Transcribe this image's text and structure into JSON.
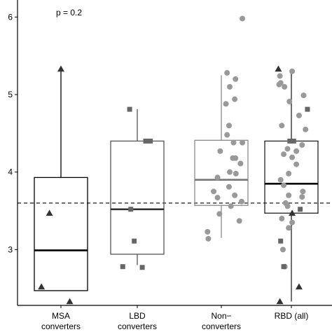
{
  "chart_data": {
    "type": "boxplot",
    "title": "",
    "xlabel": "",
    "ylabel": "",
    "annotation": "p = 0.2",
    "ylim": [
      2.28,
      6.22
    ],
    "y_ticks": [
      3,
      4,
      5,
      6
    ],
    "y_tick_labels": [
      "3",
      "4",
      "5",
      "6"
    ],
    "reference_line": 3.6,
    "grid": false,
    "categories": [
      "MSA converters",
      "LBD converters",
      "Non− converters",
      "RBD (all)"
    ],
    "category_label_lines": [
      [
        "MSA",
        "converters"
      ],
      [
        "LBD",
        "converters"
      ],
      [
        "Non−",
        "converters"
      ],
      [
        "RBD (all)",
        ""
      ]
    ],
    "boxes": [
      {
        "name": "MSA converters",
        "q1": 2.47,
        "median": 2.99,
        "q3": 3.93,
        "whisker_low": 2.47,
        "whisker_high": 5.33,
        "box_color": "#000000",
        "median_color": "#000000"
      },
      {
        "name": "LBD converters",
        "q1": 2.94,
        "median": 3.52,
        "q3": 4.4,
        "whisker_low": 2.8,
        "whisker_high": 4.81,
        "box_color": "#555555",
        "median_color": "#333333"
      },
      {
        "name": "Non− converters",
        "q1": 3.57,
        "median": 3.9,
        "q3": 4.41,
        "whisker_low": 3.15,
        "whisker_high": 5.25,
        "box_color": "#8a8a8a",
        "median_color": "#777777"
      },
      {
        "name": "RBD (all)",
        "q1": 3.47,
        "median": 3.85,
        "q3": 4.4,
        "whisker_low": 2.33,
        "whisker_high": 5.33,
        "box_color": "#222222",
        "median_color": "#000000"
      }
    ],
    "points": [
      {
        "group": 0,
        "y": 5.33,
        "shape": "triangle",
        "color": "#333333",
        "jitter": 0
      },
      {
        "group": 0,
        "y": 3.47,
        "shape": "triangle",
        "color": "#333333",
        "jitter": -0.3
      },
      {
        "group": 0,
        "y": 2.52,
        "shape": "triangle",
        "color": "#333333",
        "jitter": -0.51
      },
      {
        "group": 0,
        "y": 2.33,
        "shape": "triangle",
        "color": "#333333",
        "jitter": 0.23
      },
      {
        "group": 1,
        "y": 4.81,
        "shape": "square",
        "color": "#666666",
        "jitter": -0.2
      },
      {
        "group": 1,
        "y": 4.4,
        "shape": "square",
        "color": "#666666",
        "jitter": 0.22
      },
      {
        "group": 1,
        "y": 4.4,
        "shape": "square",
        "color": "#666666",
        "jitter": 0.34
      },
      {
        "group": 1,
        "y": 3.52,
        "shape": "square",
        "color": "#666666",
        "jitter": -0.17
      },
      {
        "group": 1,
        "y": 3.11,
        "shape": "square",
        "color": "#666666",
        "jitter": -0.08
      },
      {
        "group": 1,
        "y": 2.78,
        "shape": "square",
        "color": "#666666",
        "jitter": -0.38
      },
      {
        "group": 1,
        "y": 2.77,
        "shape": "square",
        "color": "#666666",
        "jitter": 0.13
      },
      {
        "group": 2,
        "y": 5.98,
        "shape": "circle",
        "color": "#999999",
        "jitter": 0.55
      },
      {
        "group": 2,
        "y": 5.28,
        "shape": "circle",
        "color": "#999999",
        "jitter": 0.15
      },
      {
        "group": 2,
        "y": 5.2,
        "shape": "circle",
        "color": "#999999",
        "jitter": 0.37
      },
      {
        "group": 2,
        "y": 5.1,
        "shape": "circle",
        "color": "#999999",
        "jitter": 0.22
      },
      {
        "group": 2,
        "y": 4.94,
        "shape": "circle",
        "color": "#999999",
        "jitter": 0.35
      },
      {
        "group": 2,
        "y": 4.88,
        "shape": "circle",
        "color": "#999999",
        "jitter": 0.12
      },
      {
        "group": 2,
        "y": 4.6,
        "shape": "circle",
        "color": "#999999",
        "jitter": 0.2
      },
      {
        "group": 2,
        "y": 4.48,
        "shape": "circle",
        "color": "#999999",
        "jitter": 0.15
      },
      {
        "group": 2,
        "y": 4.38,
        "shape": "circle",
        "color": "#999999",
        "jitter": 0.55
      },
      {
        "group": 2,
        "y": 4.38,
        "shape": "circle",
        "color": "#999999",
        "jitter": 0.32
      },
      {
        "group": 2,
        "y": 4.27,
        "shape": "circle",
        "color": "#999999",
        "jitter": -0.03
      },
      {
        "group": 2,
        "y": 4.18,
        "shape": "circle",
        "color": "#999999",
        "jitter": 0.3
      },
      {
        "group": 2,
        "y": 4.18,
        "shape": "circle",
        "color": "#999999",
        "jitter": 0.37
      },
      {
        "group": 2,
        "y": 4.11,
        "shape": "circle",
        "color": "#999999",
        "jitter": 0.5
      },
      {
        "group": 2,
        "y": 4.0,
        "shape": "circle",
        "color": "#999999",
        "jitter": 0.22
      },
      {
        "group": 2,
        "y": 3.98,
        "shape": "circle",
        "color": "#999999",
        "jitter": 0.38
      },
      {
        "group": 2,
        "y": 3.93,
        "shape": "circle",
        "color": "#999999",
        "jitter": -0.1
      },
      {
        "group": 2,
        "y": 3.81,
        "shape": "circle",
        "color": "#999999",
        "jitter": 0.2
      },
      {
        "group": 2,
        "y": 3.75,
        "shape": "circle",
        "color": "#999999",
        "jitter": -0.2
      },
      {
        "group": 2,
        "y": 3.7,
        "shape": "circle",
        "color": "#999999",
        "jitter": 0.35
      },
      {
        "group": 2,
        "y": 3.67,
        "shape": "circle",
        "color": "#999999",
        "jitter": -0.1
      },
      {
        "group": 2,
        "y": 3.62,
        "shape": "circle",
        "color": "#999999",
        "jitter": 0.53
      },
      {
        "group": 2,
        "y": 3.56,
        "shape": "circle",
        "color": "#999999",
        "jitter": 0.25
      },
      {
        "group": 2,
        "y": 3.46,
        "shape": "circle",
        "color": "#999999",
        "jitter": -0.05
      },
      {
        "group": 2,
        "y": 3.37,
        "shape": "circle",
        "color": "#999999",
        "jitter": 0.47
      },
      {
        "group": 2,
        "y": 3.23,
        "shape": "circle",
        "color": "#999999",
        "jitter": -0.36
      },
      {
        "group": 2,
        "y": 3.14,
        "shape": "circle",
        "color": "#999999",
        "jitter": -0.34
      },
      {
        "group": 3,
        "y": 5.33,
        "shape": "triangle",
        "color": "#333333",
        "jitter": -0.34
      },
      {
        "group": 3,
        "y": 5.3,
        "shape": "circle",
        "color": "#999999",
        "jitter": 0.02
      },
      {
        "group": 3,
        "y": 5.24,
        "shape": "circle",
        "color": "#999999",
        "jitter": -0.3
      },
      {
        "group": 3,
        "y": 5.15,
        "shape": "circle",
        "color": "#999999",
        "jitter": -0.28
      },
      {
        "group": 3,
        "y": 5.13,
        "shape": "circle",
        "color": "#999999",
        "jitter": -0.32
      },
      {
        "group": 3,
        "y": 5.1,
        "shape": "circle",
        "color": "#999999",
        "jitter": -0.18
      },
      {
        "group": 3,
        "y": 4.99,
        "shape": "circle",
        "color": "#999999",
        "jitter": 0.32
      },
      {
        "group": 3,
        "y": 4.91,
        "shape": "circle",
        "color": "#999999",
        "jitter": -0.05
      },
      {
        "group": 3,
        "y": 4.81,
        "shape": "square",
        "color": "#666666",
        "jitter": 0.42
      },
      {
        "group": 3,
        "y": 4.73,
        "shape": "circle",
        "color": "#999999",
        "jitter": 0.2
      },
      {
        "group": 3,
        "y": 4.6,
        "shape": "circle",
        "color": "#999999",
        "jitter": -0.25
      },
      {
        "group": 3,
        "y": 4.55,
        "shape": "circle",
        "color": "#999999",
        "jitter": 0.37
      },
      {
        "group": 3,
        "y": 4.4,
        "shape": "square",
        "color": "#666666",
        "jitter": -0.04
      },
      {
        "group": 3,
        "y": 4.4,
        "shape": "square",
        "color": "#666666",
        "jitter": 0.06
      },
      {
        "group": 3,
        "y": 4.35,
        "shape": "circle",
        "color": "#999999",
        "jitter": 0.28
      },
      {
        "group": 3,
        "y": 4.3,
        "shape": "circle",
        "color": "#999999",
        "jitter": -0.1
      },
      {
        "group": 3,
        "y": 4.27,
        "shape": "circle",
        "color": "#999999",
        "jitter": 0.13
      },
      {
        "group": 3,
        "y": 4.23,
        "shape": "circle",
        "color": "#999999",
        "jitter": -0.2
      },
      {
        "group": 3,
        "y": 4.19,
        "shape": "circle",
        "color": "#999999",
        "jitter": 0.02
      },
      {
        "group": 3,
        "y": 4.1,
        "shape": "circle",
        "color": "#999999",
        "jitter": 0.13
      },
      {
        "group": 3,
        "y": 3.98,
        "shape": "circle",
        "color": "#999999",
        "jitter": -0.07
      },
      {
        "group": 3,
        "y": 3.9,
        "shape": "circle",
        "color": "#999999",
        "jitter": -0.28
      },
      {
        "group": 3,
        "y": 3.83,
        "shape": "circle",
        "color": "#999999",
        "jitter": -0.2
      },
      {
        "group": 3,
        "y": 3.75,
        "shape": "circle",
        "color": "#999999",
        "jitter": 0.3
      },
      {
        "group": 3,
        "y": 3.7,
        "shape": "circle",
        "color": "#999999",
        "jitter": -0.07
      },
      {
        "group": 3,
        "y": 3.68,
        "shape": "circle",
        "color": "#999999",
        "jitter": 0.28
      },
      {
        "group": 3,
        "y": 3.6,
        "shape": "circle",
        "color": "#999999",
        "jitter": -0.15
      },
      {
        "group": 3,
        "y": 3.56,
        "shape": "circle",
        "color": "#999999",
        "jitter": -0.1
      },
      {
        "group": 3,
        "y": 3.52,
        "shape": "square",
        "color": "#666666",
        "jitter": 0.23
      },
      {
        "group": 3,
        "y": 3.47,
        "shape": "triangle",
        "color": "#333333",
        "jitter": 0.02
      },
      {
        "group": 3,
        "y": 3.4,
        "shape": "circle",
        "color": "#999999",
        "jitter": -0.25
      },
      {
        "group": 3,
        "y": 3.35,
        "shape": "circle",
        "color": "#999999",
        "jitter": 0.02
      },
      {
        "group": 3,
        "y": 3.28,
        "shape": "circle",
        "color": "#999999",
        "jitter": -0.07
      },
      {
        "group": 3,
        "y": 3.11,
        "shape": "square",
        "color": "#666666",
        "jitter": -0.28
      },
      {
        "group": 3,
        "y": 3.0,
        "shape": "circle",
        "color": "#999999",
        "jitter": -0.22
      },
      {
        "group": 3,
        "y": 2.78,
        "shape": "circle",
        "color": "#999999",
        "jitter": -0.17
      },
      {
        "group": 3,
        "y": 2.78,
        "shape": "square",
        "color": "#666666",
        "jitter": -0.2
      },
      {
        "group": 3,
        "y": 2.52,
        "shape": "triangle",
        "color": "#333333",
        "jitter": 0.2
      },
      {
        "group": 3,
        "y": 2.33,
        "shape": "triangle",
        "color": "#333333",
        "jitter": -0.3
      }
    ]
  }
}
